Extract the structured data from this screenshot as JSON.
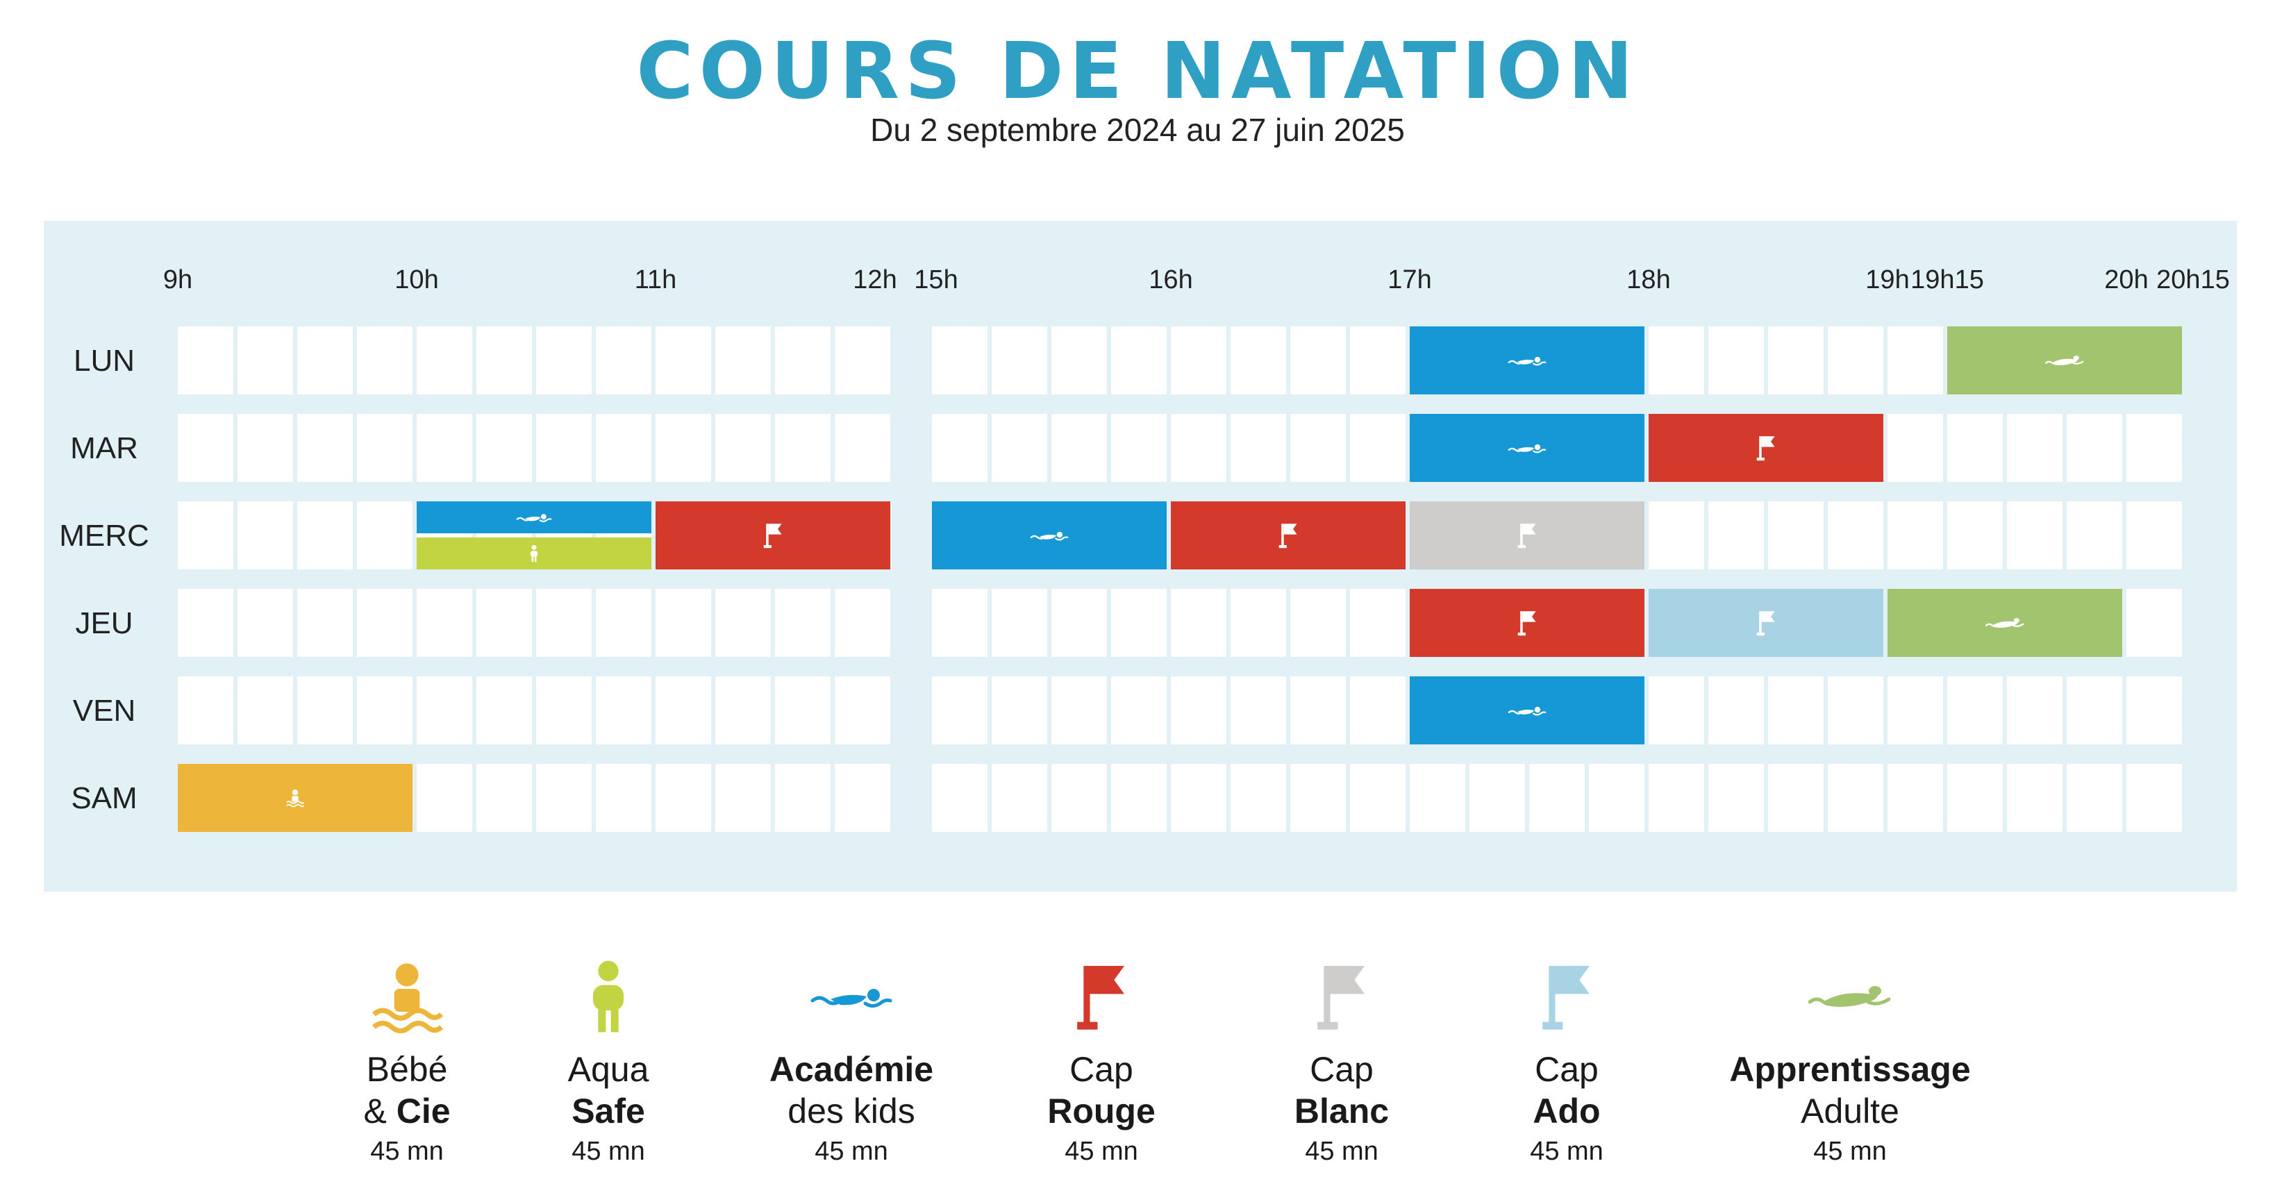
{
  "header": {
    "title": "COURS DE NATATION",
    "subtitle": "Du 2 septembre 2024 au 27 juin 2025"
  },
  "times": [
    "9h",
    "10h",
    "11h",
    "12h",
    "15h",
    "16h",
    "17h",
    "18h",
    "19h",
    "19h15",
    "20h",
    "20h15"
  ],
  "days": [
    "LUN",
    "MAR",
    "MERC",
    "JEU",
    "VEN",
    "SAM"
  ],
  "colors": {
    "bebe": "#edb53a",
    "aqua": "#c3d443",
    "academie": "#1798d6",
    "cap_rouge": "#d33a2c",
    "cap_blanc": "#cfcdcb",
    "cap_ado": "#a8d3e4",
    "adulte": "#a3c46e"
  },
  "schedule": [
    {
      "day": "LUN",
      "course": "academie",
      "start": "17h",
      "end": "18h"
    },
    {
      "day": "LUN",
      "course": "adulte",
      "start": "19h15",
      "end": "20h15"
    },
    {
      "day": "MAR",
      "course": "academie",
      "start": "17h",
      "end": "18h"
    },
    {
      "day": "MAR",
      "course": "cap_rouge",
      "start": "18h",
      "end": "19h"
    },
    {
      "day": "MERC",
      "course": "academie",
      "start": "10h",
      "end": "11h"
    },
    {
      "day": "MERC",
      "course": "aqua",
      "start": "10h",
      "end": "11h"
    },
    {
      "day": "MERC",
      "course": "cap_rouge",
      "start": "11h",
      "end": "12h"
    },
    {
      "day": "MERC",
      "course": "academie",
      "start": "15h",
      "end": "16h"
    },
    {
      "day": "MERC",
      "course": "cap_rouge",
      "start": "16h",
      "end": "17h"
    },
    {
      "day": "MERC",
      "course": "cap_blanc",
      "start": "17h",
      "end": "18h"
    },
    {
      "day": "JEU",
      "course": "cap_rouge",
      "start": "17h",
      "end": "18h"
    },
    {
      "day": "JEU",
      "course": "cap_ado",
      "start": "18h",
      "end": "19h"
    },
    {
      "day": "JEU",
      "course": "adulte",
      "start": "19h",
      "end": "20h"
    },
    {
      "day": "VEN",
      "course": "academie",
      "start": "17h",
      "end": "18h"
    },
    {
      "day": "SAM",
      "course": "bebe",
      "start": "9h",
      "end": "10h"
    }
  ],
  "legend": [
    {
      "key": "bebe",
      "icon": "baby-swimmer-icon",
      "line1": "Bébé",
      "line2_prefix": "& ",
      "line2_bold": "Cie",
      "duration": "45 mn"
    },
    {
      "key": "aqua",
      "icon": "child-with-float-icon",
      "line1": "Aqua",
      "line2_prefix": "",
      "line2_bold": "Safe",
      "duration": "45 mn"
    },
    {
      "key": "academie",
      "icon": "swimmer-icon",
      "line1_bold": "Académie",
      "line2": "des kids",
      "duration": "45 mn"
    },
    {
      "key": "cap_rouge",
      "icon": "red-flag-icon",
      "line1": "Cap",
      "line2_prefix": "",
      "line2_bold": "Rouge",
      "duration": "45 mn"
    },
    {
      "key": "cap_blanc",
      "icon": "white-flag-icon",
      "line1": "Cap",
      "line2_prefix": "",
      "line2_bold": "Blanc",
      "duration": "45 mn"
    },
    {
      "key": "cap_ado",
      "icon": "blue-flag-icon",
      "line1": "Cap",
      "line2_prefix": "",
      "line2_bold": "Ado",
      "duration": "45 mn"
    },
    {
      "key": "adulte",
      "icon": "adult-swimmer-icon",
      "line1_bold": "Apprentissage",
      "line2": "Adulte",
      "duration": "45 mn"
    }
  ]
}
